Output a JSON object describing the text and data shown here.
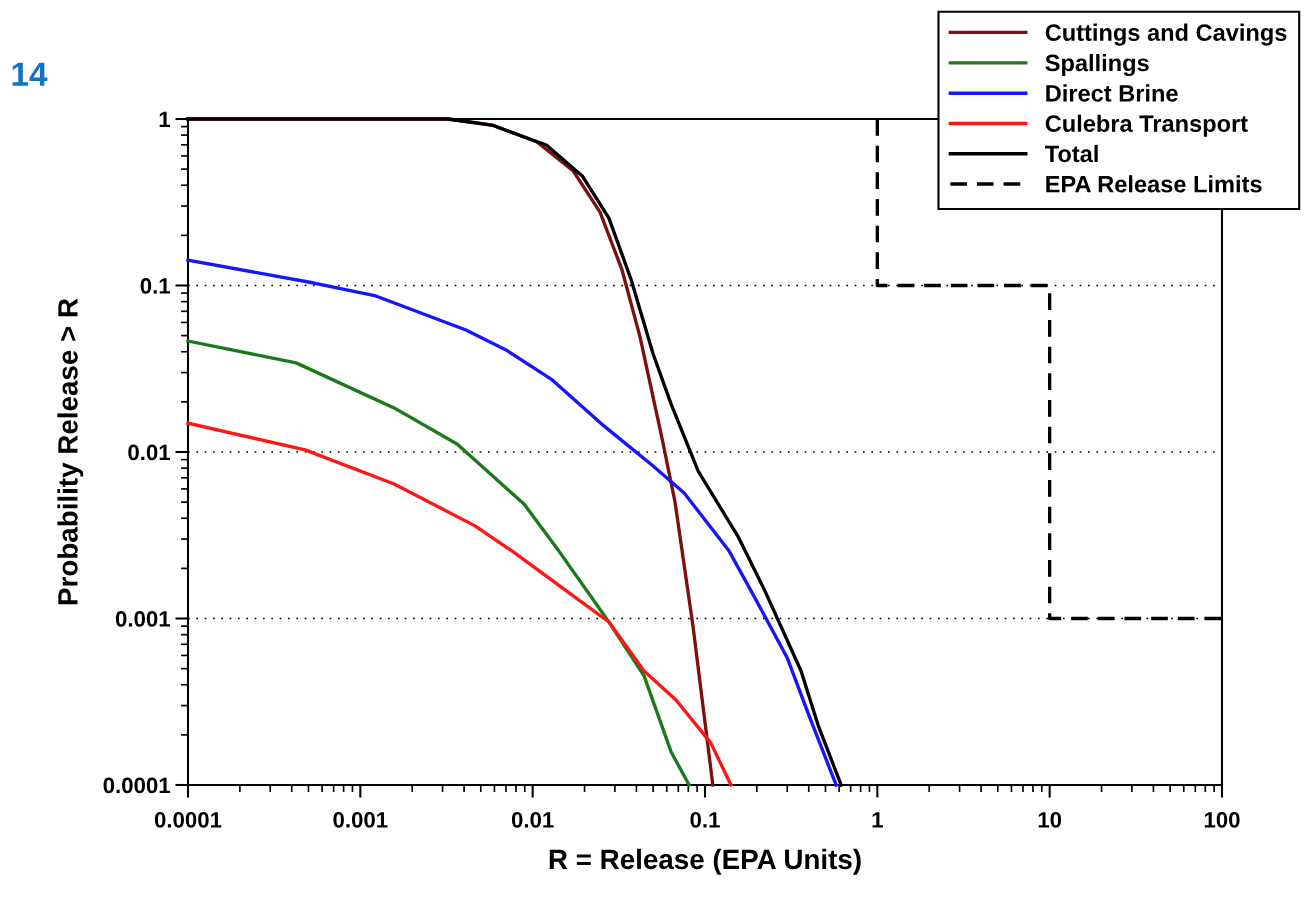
{
  "chart_data": {
    "type": "line",
    "xlabel": "R = Release (EPA Units)",
    "ylabel": "Probability Release > R",
    "log": "xy",
    "xlim": [
      0.0001,
      100
    ],
    "ylim": [
      0.0001,
      1
    ],
    "xticks": [
      {
        "value": 0.0001,
        "label": "0.0001"
      },
      {
        "value": 0.001,
        "label": "0.001"
      },
      {
        "value": 0.01,
        "label": "0.01"
      },
      {
        "value": 0.1,
        "label": "0.1"
      },
      1,
      10,
      100
    ],
    "yticks": [
      {
        "value": 0.0001,
        "label": "0.0001"
      },
      {
        "value": 0.001,
        "label": "0.001"
      },
      {
        "value": 0.01,
        "label": "0.01"
      },
      {
        "value": 0.1,
        "label": "0.1"
      },
      1
    ],
    "grid": "y",
    "legend": "top right",
    "marker": "none",
    "annotations": [
      "14"
    ],
    "series": [
      {
        "name": "Cuttings and Cavings",
        "color": "#7b1010",
        "x": [
          0.0001,
          0.00323,
          0.0058,
          0.0106,
          0.0172,
          0.0246,
          0.033,
          0.042,
          0.0564,
          0.067,
          0.0853,
          0.111
        ],
        "values": [
          1,
          1,
          0.92,
          0.728,
          0.487,
          0.276,
          0.124,
          0.049,
          0.012,
          0.00501,
          0.00089,
          0.0001
        ]
      },
      {
        "name": "Spallings",
        "color": "#1a7a1a",
        "x": [
          0.0001,
          0.000424,
          0.00157,
          0.00364,
          0.00891,
          0.0142,
          0.0277,
          0.0443,
          0.0636,
          0.0809
        ],
        "values": [
          0.0464,
          0.0343,
          0.0184,
          0.01117,
          0.00487,
          0.00254,
          0.000953,
          0.000452,
          0.000158,
          0.0001
        ]
      },
      {
        "name": "Direct Brine",
        "color": "#1515ff",
        "x": [
          0.0001,
          0.000538,
          0.00123,
          0.0041,
          0.00701,
          0.0128,
          0.026,
          0.05,
          0.0757,
          0.138,
          0.198,
          0.3,
          0.402,
          0.577
        ],
        "values": [
          0.142,
          0.1035,
          0.0865,
          0.054,
          0.041,
          0.0274,
          0.0143,
          0.00824,
          0.00568,
          0.00254,
          0.00129,
          0.00058,
          0.00026,
          0.0001
        ]
      },
      {
        "name": "Culebra Transport",
        "color": "#ff1515",
        "x": [
          0.0001,
          0.000478,
          0.00157,
          0.00463,
          0.0079,
          0.0152,
          0.0277,
          0.0443,
          0.0679,
          0.108,
          0.1415
        ],
        "values": [
          0.0149,
          0.0103,
          0.00643,
          0.0036,
          0.00247,
          0.0015,
          0.000953,
          0.000484,
          0.000324,
          0.000179,
          0.0001
        ]
      },
      {
        "name": "Total",
        "color": "#000000",
        "x": [
          0.0001,
          0.00323,
          0.0058,
          0.012,
          0.0194,
          0.0277,
          0.0372,
          0.05,
          0.0636,
          0.0912,
          0.156,
          0.223,
          0.361,
          0.453,
          0.617
        ],
        "values": [
          1,
          1,
          0.92,
          0.698,
          0.455,
          0.254,
          0.109,
          0.0388,
          0.0194,
          0.00769,
          0.00309,
          0.00146,
          0.000484,
          0.000229,
          0.0001
        ]
      },
      {
        "name": "EPA Release Limits",
        "color": "#000000",
        "line_style": "dashed",
        "x": [
          1,
          1,
          10,
          10,
          100
        ],
        "values": [
          1,
          0.1,
          0.1,
          0.001,
          0.001
        ]
      }
    ]
  }
}
